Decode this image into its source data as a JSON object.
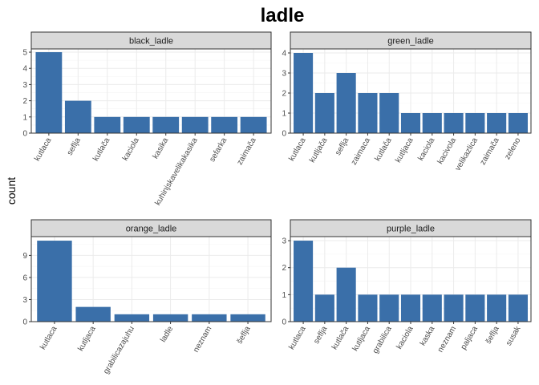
{
  "chart_data": {
    "type": "bar",
    "title": "ladle",
    "ylabel": "count",
    "xlabel": "",
    "bar_color": "#3a6fa9",
    "grid": true,
    "panels": [
      {
        "name": "black_ladle",
        "ylim": [
          0,
          5.2
        ],
        "yticks": [
          0,
          1,
          2,
          3,
          4,
          5
        ],
        "categories": [
          "kutlaca",
          "seflja",
          "kutlača",
          "kaciola",
          "kasika",
          "kuhinjskavelikakasika",
          "sefarka",
          "zaimača"
        ],
        "values": [
          5,
          2,
          1,
          1,
          1,
          1,
          1,
          1
        ]
      },
      {
        "name": "green_ladle",
        "ylim": [
          0,
          4.2
        ],
        "yticks": [
          0,
          1,
          2,
          3,
          4
        ],
        "categories": [
          "kutlaca",
          "kutljača",
          "seflja",
          "zaimaca",
          "kutlača",
          "kutljaca",
          "kaciola",
          "kacivola",
          "velikazlica",
          "zaimača",
          "zeleno"
        ],
        "values": [
          4,
          2,
          3,
          2,
          2,
          1,
          1,
          1,
          1,
          1,
          1
        ]
      },
      {
        "name": "orange_ladle",
        "ylim": [
          0,
          11.55
        ],
        "yticks": [
          0,
          3,
          6,
          9
        ],
        "categories": [
          "kutlaca",
          "kutljaca",
          "grabilicazajuhu",
          "ladle",
          "neznam",
          "šeflja"
        ],
        "values": [
          11,
          2,
          1,
          1,
          1,
          1
        ]
      },
      {
        "name": "purple_ladle",
        "ylim": [
          0,
          3.15
        ],
        "yticks": [
          0,
          1,
          2,
          3
        ],
        "categories": [
          "kutlaca",
          "seflja",
          "kutlača",
          "kutljaca",
          "grabilica",
          "kaciola",
          "kaska",
          "neznam",
          "paljaca",
          "šeflja",
          "susak"
        ],
        "values": [
          3,
          1,
          2,
          1,
          1,
          1,
          1,
          1,
          1,
          1,
          1
        ]
      }
    ]
  }
}
